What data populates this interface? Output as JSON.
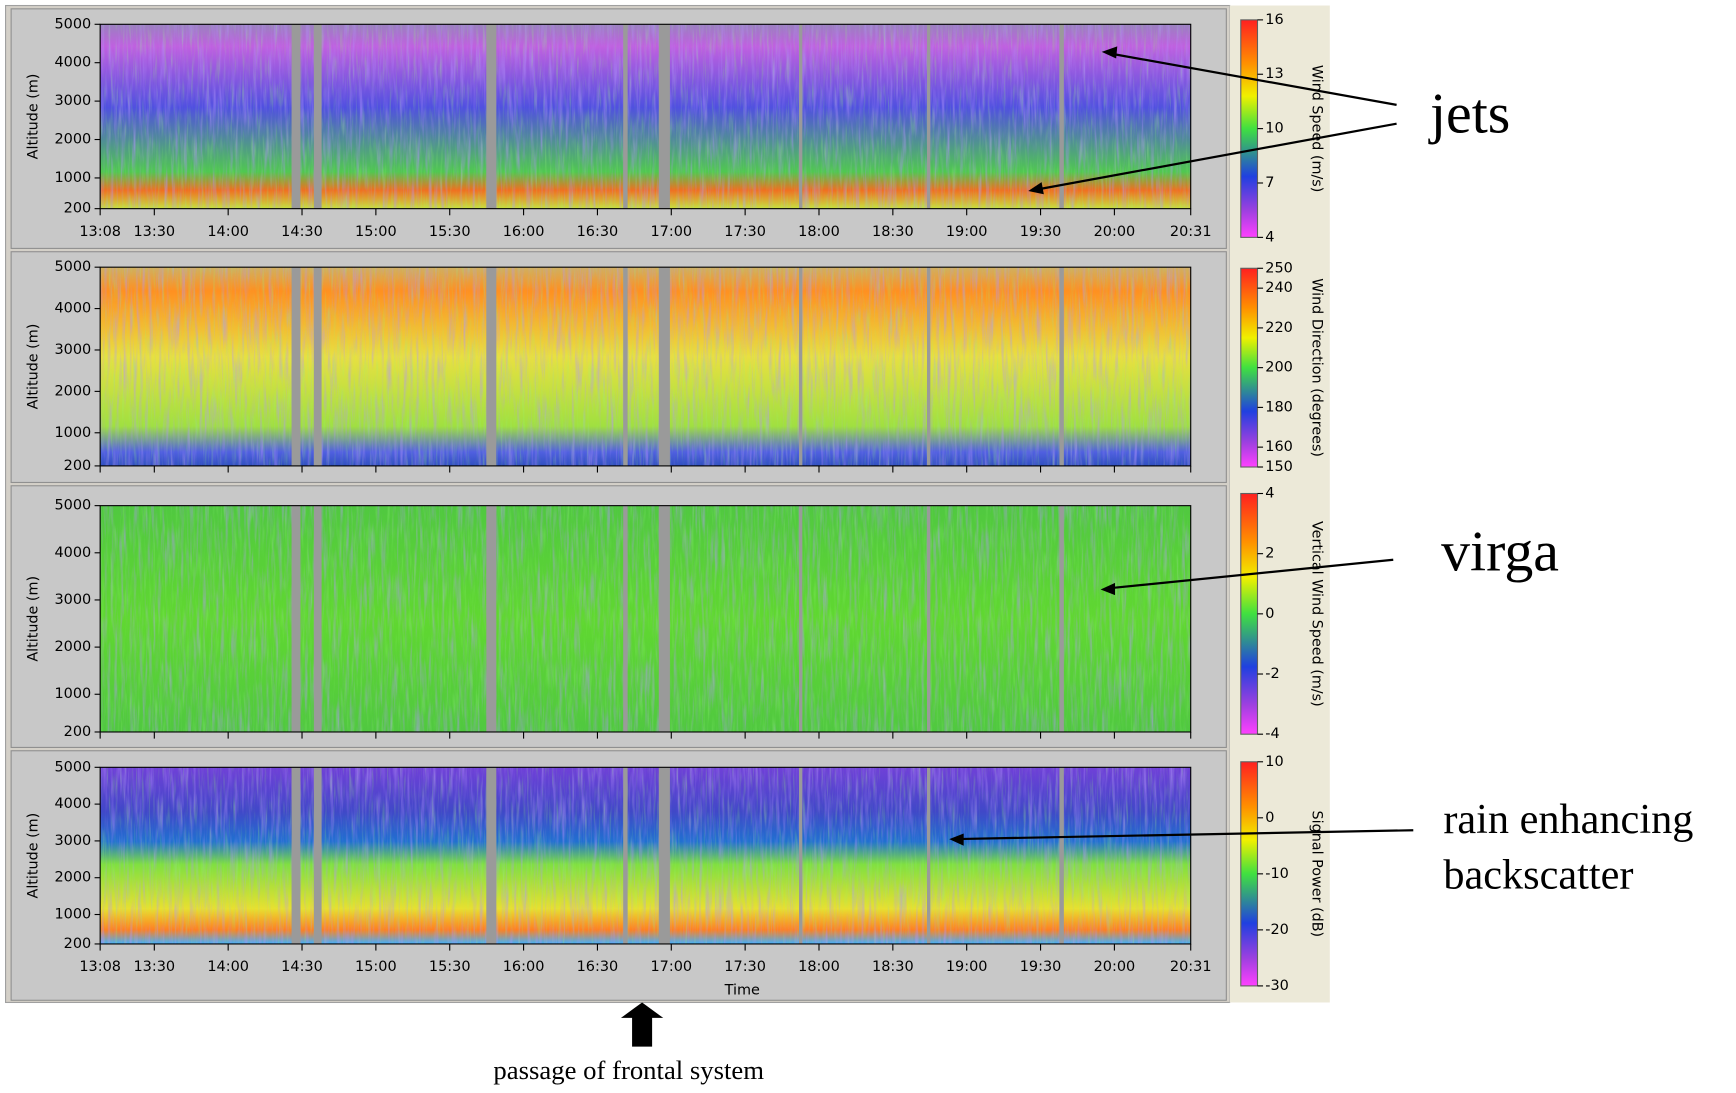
{
  "chart_data": [
    {
      "type": "heatmap",
      "ylabel": "Altitude (m)",
      "ylim": [
        200,
        5000
      ],
      "yticks": [
        200,
        1000,
        2000,
        3000,
        4000,
        5000
      ],
      "xlim": [
        "13:08",
        "20:31"
      ],
      "xticks": [
        "13:08",
        "13:30",
        "14:00",
        "14:30",
        "15:00",
        "15:30",
        "16:00",
        "16:30",
        "17:00",
        "17:30",
        "18:00",
        "18:30",
        "19:00",
        "19:30",
        "20:00",
        "20:31"
      ],
      "xtick_labels": true,
      "colorbar": {
        "label": "Wind Speed (m/s)",
        "zlim": [
          16,
          4
        ],
        "zticks": [
          16,
          13,
          10,
          7,
          4
        ]
      }
    },
    {
      "type": "heatmap",
      "ylabel": "Altitude (m)",
      "ylim": [
        200,
        5000
      ],
      "yticks": [
        200,
        1000,
        2000,
        3000,
        4000,
        5000
      ],
      "xlim": [
        "13:08",
        "20:31"
      ],
      "xticks": [
        "13:08",
        "13:30",
        "14:00",
        "14:30",
        "15:00",
        "15:30",
        "16:00",
        "16:30",
        "17:00",
        "17:30",
        "18:00",
        "18:30",
        "19:00",
        "19:30",
        "20:00",
        "20:31"
      ],
      "xtick_labels": false,
      "colorbar": {
        "label": "Wind Direction (degrees)",
        "zlim": [
          250,
          150
        ],
        "zticks": [
          250,
          240,
          220,
          200,
          180,
          160,
          150
        ]
      }
    },
    {
      "type": "heatmap",
      "ylabel": "Altitude (m)",
      "ylim": [
        200,
        5000
      ],
      "yticks": [
        200,
        1000,
        2000,
        3000,
        4000,
        5000
      ],
      "xlim": [
        "13:08",
        "20:31"
      ],
      "xticks": [
        "13:08",
        "13:30",
        "14:00",
        "14:30",
        "15:00",
        "15:30",
        "16:00",
        "16:30",
        "17:00",
        "17:30",
        "18:00",
        "18:30",
        "19:00",
        "19:30",
        "20:00",
        "20:31"
      ],
      "xtick_labels": false,
      "colorbar": {
        "label": "Vertical Wind Speed (m/s)",
        "zlim": [
          4,
          -4
        ],
        "zticks": [
          4,
          2,
          0,
          -2,
          -4
        ]
      }
    },
    {
      "type": "heatmap",
      "ylabel": "Altitude (m)",
      "xlabel": "Time",
      "ylim": [
        200,
        5000
      ],
      "yticks": [
        200,
        1000,
        2000,
        3000,
        4000,
        5000
      ],
      "xlim": [
        "13:08",
        "20:31"
      ],
      "xticks": [
        "13:08",
        "13:30",
        "14:00",
        "14:30",
        "15:00",
        "15:30",
        "16:00",
        "16:30",
        "17:00",
        "17:30",
        "18:00",
        "18:30",
        "19:00",
        "19:30",
        "20:00",
        "20:31"
      ],
      "xtick_labels": true,
      "colorbar": {
        "label": "Signal Power (dB)",
        "zlim": [
          10,
          -30
        ],
        "zticks": [
          10,
          0,
          -10,
          -20,
          -30
        ]
      }
    }
  ],
  "annotations": [
    "jets",
    "virga",
    [
      "rain enhancing",
      "backscatter"
    ],
    "passage of frontal system"
  ]
}
